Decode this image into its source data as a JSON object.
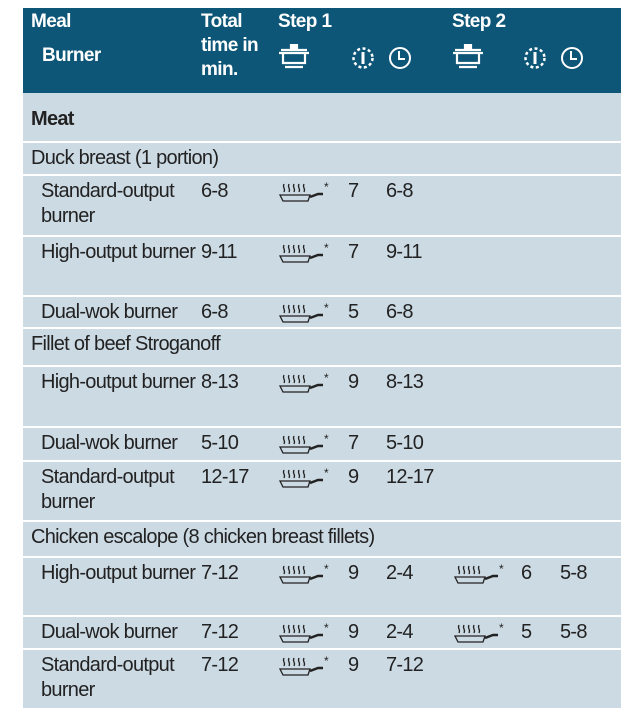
{
  "header": {
    "meal": "Meal",
    "burner": "Burner",
    "total": "Total time in min.",
    "step1": "Step 1",
    "step2": "Step 2",
    "icons": [
      "pot-on-burner-icon",
      "power-level-icon",
      "clock-icon"
    ]
  },
  "colors": {
    "header_bg": "#0d5678",
    "body_bg": "#ccdae4"
  },
  "rows": [
    {
      "type": "section",
      "label": "Meat"
    },
    {
      "type": "group",
      "label": "Duck breast (1 portion)"
    },
    {
      "type": "item",
      "burner": "Standard-output burner",
      "total": "6-8",
      "s1": {
        "icon": "frying-pan-icon",
        "mark": "*",
        "level": "7",
        "time": "6-8"
      }
    },
    {
      "type": "item",
      "burner": "High-output burner",
      "total": "9-11",
      "s1": {
        "icon": "frying-pan-icon",
        "mark": "*",
        "level": "7",
        "time": "9-11"
      }
    },
    {
      "type": "item",
      "burner": "Dual-wok burner",
      "total": "6-8",
      "s1": {
        "icon": "frying-pan-icon",
        "mark": "*",
        "level": "5",
        "time": "6-8"
      }
    },
    {
      "type": "group",
      "label": "Fillet of beef Stroganoff"
    },
    {
      "type": "item",
      "burner": "High-output burner",
      "total": "8-13",
      "s1": {
        "icon": "frying-pan-icon",
        "mark": "*",
        "level": "9",
        "time": "8-13"
      }
    },
    {
      "type": "item",
      "burner": "Dual-wok burner",
      "total": "5-10",
      "s1": {
        "icon": "frying-pan-icon",
        "mark": "*",
        "level": "7",
        "time": "5-10"
      }
    },
    {
      "type": "item",
      "burner": "Standard-output burner",
      "total": "12-17",
      "s1": {
        "icon": "frying-pan-icon",
        "mark": "*",
        "level": "9",
        "time": "12-17"
      }
    },
    {
      "type": "group",
      "label": "Chicken escalope (8 chicken breast fillets)"
    },
    {
      "type": "item",
      "burner": "High-output burner",
      "total": "7-12",
      "s1": {
        "icon": "frying-pan-icon",
        "mark": "*",
        "level": "9",
        "time": "2-4"
      },
      "s2": {
        "icon": "frying-pan-icon",
        "mark": "*",
        "level": "6",
        "time": "5-8"
      }
    },
    {
      "type": "item",
      "burner": "Dual-wok burner",
      "total": "7-12",
      "s1": {
        "icon": "frying-pan-icon",
        "mark": "*",
        "level": "9",
        "time": "2-4"
      },
      "s2": {
        "icon": "frying-pan-icon",
        "mark": "*",
        "level": "5",
        "time": "5-8"
      }
    },
    {
      "type": "item",
      "burner": "Standard-output burner",
      "total": "7-12",
      "s1": {
        "icon": "frying-pan-icon",
        "mark": "*",
        "level": "9",
        "time": "7-12"
      }
    }
  ]
}
